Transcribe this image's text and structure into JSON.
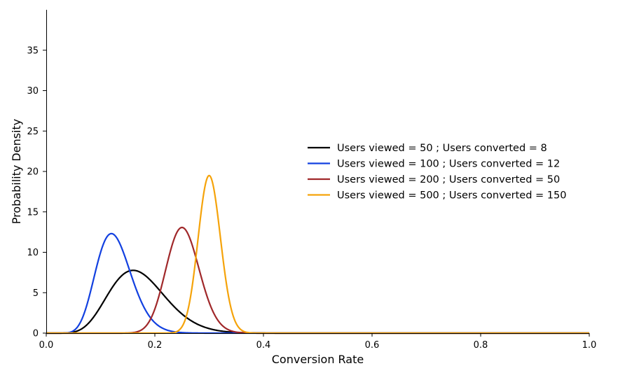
{
  "chart_data": {
    "type": "line",
    "title": "",
    "xlabel": "Conversion Rate",
    "ylabel": "Probability Density",
    "xlim": [
      0.0,
      1.0
    ],
    "ylim": [
      0,
      40
    ],
    "xticks": [
      0.0,
      0.2,
      0.4,
      0.6,
      0.8,
      1.0
    ],
    "xtick_labels": [
      "0.0",
      "0.2",
      "0.4",
      "0.6",
      "0.8",
      "1.0"
    ],
    "yticks": [
      0,
      5,
      10,
      15,
      20,
      25,
      30,
      35
    ],
    "ytick_labels": [
      "0",
      "5",
      "10",
      "15",
      "20",
      "25",
      "30",
      "35"
    ],
    "grid": false,
    "legend_position": "center-right",
    "distribution": "beta",
    "series": [
      {
        "name": "Users viewed = 50 ; Users converted = 8",
        "alpha": 9,
        "beta": 43,
        "color": "#000000",
        "peak_x": 0.16,
        "peak_y": 7.8
      },
      {
        "name": "Users viewed = 100 ; Users converted = 12",
        "alpha": 13,
        "beta": 89,
        "color": "#1240e0",
        "peak_x": 0.12,
        "peak_y": 12.3
      },
      {
        "name": "Users viewed = 200 ; Users converted = 50",
        "alpha": 51,
        "beta": 151,
        "color": "#a0282a",
        "peak_x": 0.25,
        "peak_y": 13.1
      },
      {
        "name": "Users viewed = 500 ; Users converted = 150",
        "alpha": 151,
        "beta": 351,
        "color": "#f5a30a",
        "peak_x": 0.3,
        "peak_y": 19.5
      }
    ]
  }
}
